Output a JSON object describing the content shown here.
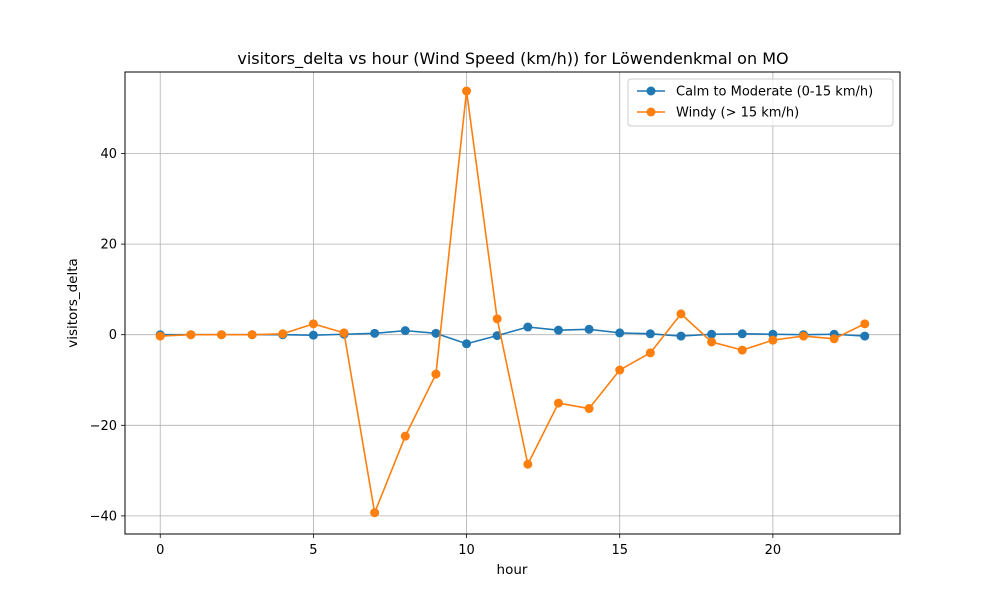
{
  "chart_data": {
    "type": "line",
    "title": "visitors_delta vs hour (Wind Speed (km/h)) for Löwendenkmal on MO",
    "xlabel": "hour",
    "ylabel": "visitors_delta",
    "xlim": [
      -1.15,
      24.15
    ],
    "ylim": [
      -44,
      58
    ],
    "xticks": [
      0,
      5,
      10,
      15,
      20
    ],
    "yticks": [
      -40,
      -20,
      0,
      20,
      40
    ],
    "grid": true,
    "legend_position": "upper right",
    "x": [
      0,
      1,
      2,
      3,
      4,
      5,
      6,
      7,
      8,
      9,
      10,
      11,
      12,
      13,
      14,
      15,
      16,
      17,
      18,
      19,
      20,
      21,
      22,
      23
    ],
    "series": [
      {
        "name": "Calm to Moderate (0-15 km/h)",
        "color": "#1f77b4",
        "values": [
          0.0,
          0.0,
          0.0,
          0.0,
          0.0,
          -0.1,
          0.1,
          0.3,
          0.9,
          0.3,
          -2.0,
          -0.2,
          1.7,
          1.0,
          1.2,
          0.4,
          0.2,
          -0.3,
          0.1,
          0.2,
          0.1,
          0.0,
          0.1,
          -0.3
        ]
      },
      {
        "name": "Windy (> 15 km/h)",
        "color": "#ff7f0e",
        "values": [
          -0.3,
          0.0,
          0.0,
          0.0,
          0.2,
          2.4,
          0.4,
          -39.3,
          -22.4,
          -8.7,
          53.8,
          3.5,
          -28.6,
          -15.1,
          -16.3,
          -7.8,
          -4.0,
          4.6,
          -1.6,
          -3.4,
          -1.2,
          -0.3,
          -0.9,
          2.4
        ]
      }
    ]
  }
}
